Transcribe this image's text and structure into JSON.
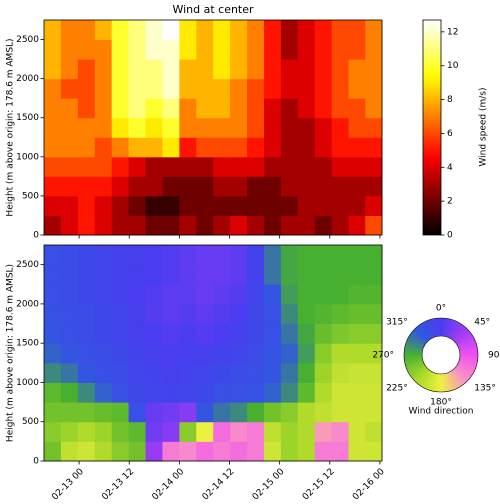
{
  "chart_data": [
    {
      "type": "heatmap",
      "title": "Wind at center",
      "ylabel": "Height (m above origin: 178.6 m AMSL)",
      "colormap": "hot",
      "x": [
        -6.4,
        -2.3,
        1.7,
        5.8,
        9.8,
        13.9,
        17.9,
        22.0,
        26.0,
        30.1,
        34.1,
        38.2,
        42.2,
        46.3,
        50.3,
        54.4,
        58.4,
        62.5,
        66.5,
        70.5
      ],
      "y": [
        125,
        375,
        625,
        875,
        1125,
        1375,
        1625,
        1875,
        2125,
        2375,
        2625
      ],
      "z": [
        [
          3,
          4,
          5,
          4,
          3,
          3,
          2,
          2,
          3,
          2,
          3,
          4,
          3,
          2,
          3,
          3,
          2,
          3,
          4,
          6
        ],
        [
          4,
          4,
          5,
          4,
          3,
          2,
          1,
          1,
          2,
          2,
          2,
          2,
          2,
          2,
          2,
          3,
          3,
          3,
          3,
          4
        ],
        [
          5,
          5,
          5,
          5,
          4,
          3,
          3,
          2,
          2,
          2,
          3,
          3,
          2,
          2,
          3,
          3,
          3,
          3,
          3,
          3
        ],
        [
          6,
          6,
          6,
          6,
          5,
          4,
          3,
          3,
          3,
          3,
          4,
          4,
          4,
          3,
          3,
          3,
          3,
          4,
          4,
          4
        ],
        [
          7,
          7,
          7,
          6,
          7,
          8,
          8,
          9,
          5,
          6,
          6,
          6,
          5,
          4,
          3,
          3,
          4,
          5,
          5,
          5
        ],
        [
          7,
          7,
          7,
          7,
          9,
          10,
          9,
          10,
          7,
          7,
          7,
          7,
          6,
          4,
          3,
          3,
          4,
          5,
          6,
          6
        ],
        [
          7,
          7,
          6,
          7,
          10,
          11,
          10,
          11,
          7,
          8,
          8,
          7,
          6,
          4,
          3,
          4,
          5,
          6,
          6,
          7
        ],
        [
          7,
          6,
          6,
          7,
          10,
          11,
          11,
          12,
          8,
          8,
          8,
          7,
          6,
          5,
          4,
          4,
          5,
          6,
          7,
          7
        ],
        [
          8,
          7,
          6,
          7,
          10,
          11,
          11,
          12,
          8,
          8,
          9,
          8,
          7,
          5,
          4,
          4,
          5,
          6,
          7,
          7
        ],
        [
          8,
          7,
          7,
          7,
          10,
          11,
          12,
          12,
          9,
          8,
          9,
          8,
          7,
          5,
          3,
          4,
          5,
          6,
          6,
          7
        ],
        [
          8,
          7,
          7,
          8,
          10,
          11,
          12,
          12.7,
          9,
          8,
          9,
          8,
          7,
          5,
          3,
          4,
          5,
          6,
          6,
          7
        ]
      ],
      "xlim": [
        -8.4,
        72.5
      ],
      "ylim": [
        0,
        2750
      ],
      "yticks": [
        0,
        500,
        1000,
        1500,
        2000,
        2500
      ],
      "colorbar": {
        "label": "Wind speed (m/s)",
        "lim": [
          0,
          12.7
        ],
        "ticks": [
          0,
          2,
          4,
          6,
          8,
          10,
          12
        ]
      }
    },
    {
      "type": "heatmap",
      "ylabel": "Height (m above origin: 178.6 m AMSL)",
      "colormap": [
        {
          "value": 0,
          "color": "#4a3cf0"
        },
        {
          "value": 45,
          "color": "#a23cf5"
        },
        {
          "value": 90,
          "color": "#f050f0"
        },
        {
          "value": 135,
          "color": "#f890c8"
        },
        {
          "value": 180,
          "color": "#eef040"
        },
        {
          "value": 225,
          "color": "#a8d828"
        },
        {
          "value": 270,
          "color": "#48b030"
        },
        {
          "value": 315,
          "color": "#3058e0"
        },
        {
          "value": 360,
          "color": "#4a3cf0"
        }
      ],
      "x": [
        -6.4,
        -2.3,
        1.7,
        5.8,
        9.8,
        13.9,
        17.9,
        22.0,
        26.0,
        30.1,
        34.1,
        38.2,
        42.2,
        46.3,
        50.3,
        54.4,
        58.4,
        62.5,
        66.5,
        70.5
      ],
      "y": [
        125,
        375,
        625,
        875,
        1125,
        1375,
        1625,
        1875,
        2125,
        2375,
        2625
      ],
      "z": [
        [
          250,
          210,
          200,
          220,
          240,
          250,
          40,
          120,
          130,
          110,
          120,
          110,
          120,
          200,
          230,
          220,
          120,
          120,
          200,
          200
        ],
        [
          240,
          230,
          220,
          230,
          250,
          260,
          20,
          30,
          240,
          180,
          110,
          130,
          120,
          210,
          230,
          220,
          140,
          130,
          200,
          210
        ],
        [
          250,
          250,
          250,
          255,
          260,
          330,
          15,
          20,
          30,
          320,
          300,
          290,
          270,
          250,
          240,
          220,
          210,
          200,
          200,
          200
        ],
        [
          260,
          270,
          290,
          310,
          330,
          340,
          345,
          350,
          345,
          340,
          330,
          330,
          325,
          310,
          290,
          260,
          220,
          200,
          200,
          200
        ],
        [
          290,
          300,
          320,
          330,
          335,
          345,
          350,
          355,
          350,
          345,
          340,
          335,
          330,
          320,
          300,
          270,
          230,
          210,
          205,
          205
        ],
        [
          310,
          320,
          330,
          335,
          340,
          350,
          355,
          0,
          355,
          355,
          350,
          345,
          335,
          325,
          310,
          280,
          240,
          220,
          220,
          220
        ],
        [
          320,
          330,
          335,
          340,
          345,
          355,
          0,
          5,
          0,
          5,
          0,
          350,
          340,
          330,
          300,
          275,
          255,
          245,
          240,
          240
        ],
        [
          325,
          330,
          335,
          340,
          345,
          355,
          5,
          10,
          5,
          10,
          5,
          0,
          340,
          330,
          290,
          270,
          265,
          260,
          255,
          255
        ],
        [
          330,
          335,
          340,
          345,
          350,
          0,
          5,
          10,
          10,
          15,
          10,
          5,
          345,
          320,
          280,
          270,
          270,
          270,
          265,
          265
        ],
        [
          330,
          335,
          340,
          345,
          350,
          355,
          0,
          5,
          10,
          15,
          15,
          10,
          350,
          300,
          275,
          270,
          270,
          270,
          270,
          270
        ],
        [
          330,
          335,
          340,
          345,
          350,
          355,
          0,
          5,
          10,
          15,
          15,
          10,
          350,
          300,
          275,
          270,
          270,
          270,
          270,
          270
        ]
      ],
      "xlim": [
        -8.4,
        72.5
      ],
      "ylim": [
        0,
        2750
      ],
      "yticks": [
        0,
        500,
        1000,
        1500,
        2000,
        2500
      ],
      "xticks": [
        {
          "value": 0,
          "label": "02-13 00"
        },
        {
          "value": 12,
          "label": "02-13 12"
        },
        {
          "value": 24,
          "label": "02-14 00"
        },
        {
          "value": 36,
          "label": "02-14 12"
        },
        {
          "value": 48,
          "label": "02-15 00"
        },
        {
          "value": 60,
          "label": "02-15 12"
        },
        {
          "value": 72,
          "label": "02-16 00"
        }
      ],
      "colorbar": {
        "label": "Wind direction",
        "lim": [
          0,
          360
        ],
        "ticks": [
          {
            "value": 0,
            "label": "0°"
          },
          {
            "value": 45,
            "label": "45°"
          },
          {
            "value": 90,
            "label": "90°"
          },
          {
            "value": 135,
            "label": "135°"
          },
          {
            "value": 180,
            "label": "180°"
          },
          {
            "value": 225,
            "label": "225°"
          },
          {
            "value": 270,
            "label": "270°"
          },
          {
            "value": 315,
            "label": "315°"
          }
        ]
      }
    }
  ]
}
